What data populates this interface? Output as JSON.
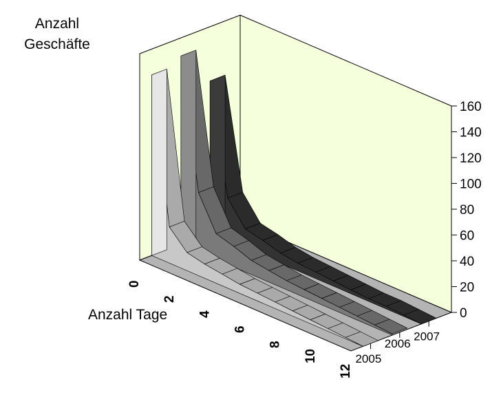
{
  "chart_data": {
    "type": "area",
    "title": "",
    "ylabel": "Anzahl Geschäfte",
    "xlabel": "Anzahl Tage",
    "zlabel": "",
    "ylim": [
      0,
      160
    ],
    "yticks": [
      0,
      20,
      40,
      60,
      80,
      100,
      120,
      140,
      160
    ],
    "xticks": [
      0,
      2,
      4,
      6,
      8,
      10,
      12
    ],
    "zcategories": [
      "2005",
      "2006",
      "2007"
    ],
    "x": [
      0,
      1,
      2,
      3,
      4,
      5,
      6,
      7,
      8,
      9,
      10,
      11,
      12
    ],
    "series": [
      {
        "name": "2005",
        "color": "#c8c8c8",
        "values": [
          140,
          28,
          14,
          11,
          9,
          7,
          6,
          5,
          4,
          3,
          2,
          1,
          0
        ]
      },
      {
        "name": "2006",
        "color": "#7a7a7a",
        "values": [
          146,
          46,
          20,
          16,
          11,
          9,
          7,
          6,
          5,
          4,
          3,
          2,
          1
        ]
      },
      {
        "name": "2007",
        "color": "#333333",
        "values": [
          118,
          33,
          15,
          12,
          8,
          6,
          5,
          4,
          3,
          2,
          2,
          1,
          0
        ]
      }
    ],
    "wall_color": "#f5ffdc",
    "grid": false
  }
}
